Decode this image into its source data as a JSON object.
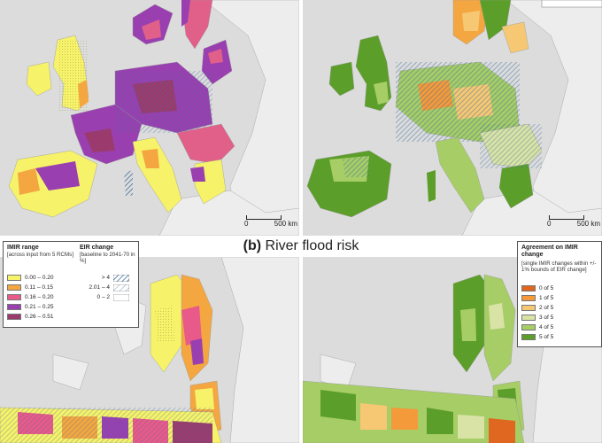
{
  "subtitle": {
    "letter": "(b)",
    "text": "River flood risk"
  },
  "scale_bars": [
    {
      "start": "0",
      "end": "500 km"
    },
    {
      "start": "0",
      "end": "500 km"
    }
  ],
  "legend_imir": {
    "title": "IMIR range",
    "subtitle": "[across input from 5 RCMs]",
    "items": [
      {
        "label": "0.00 – 0.20",
        "color": "#f6f26a"
      },
      {
        "label": "0.11 – 0.15",
        "color": "#f4a640"
      },
      {
        "label": "0.16 – 0.20",
        "color": "#e85a8a"
      },
      {
        "label": "0.21 – 0.25",
        "color": "#9a3fb0"
      },
      {
        "label": "0.26 – 0.51",
        "color": "#9b3a6c"
      }
    ]
  },
  "legend_eir": {
    "title": "EIR change",
    "subtitle": "[baseline to 2041-70 in %]",
    "items": [
      {
        "label": "> 4",
        "pattern": "dense-hatch"
      },
      {
        "label": "2.01 – 4",
        "pattern": "light-hatch"
      },
      {
        "label": "0 – 2",
        "pattern": "none"
      }
    ]
  },
  "legend_agreement": {
    "title": "Agreement on IMIR change",
    "subtitle": "[single IMIR changes within +/- 1% bounds of EIR change]",
    "items": [
      {
        "label": "0 of 5",
        "color": "#e0671f"
      },
      {
        "label": "1 of 5",
        "color": "#f49a3a"
      },
      {
        "label": "2 of 5",
        "color": "#f7c873"
      },
      {
        "label": "3 of 5",
        "color": "#d9e3a6"
      },
      {
        "label": "4 of 5",
        "color": "#a6cd66"
      },
      {
        "label": "5 of 5",
        "color": "#5c9e2a"
      }
    ]
  },
  "colors": {
    "sea": "#dcdcdc",
    "non_eu_land": "#ededed",
    "border": "#999999"
  }
}
